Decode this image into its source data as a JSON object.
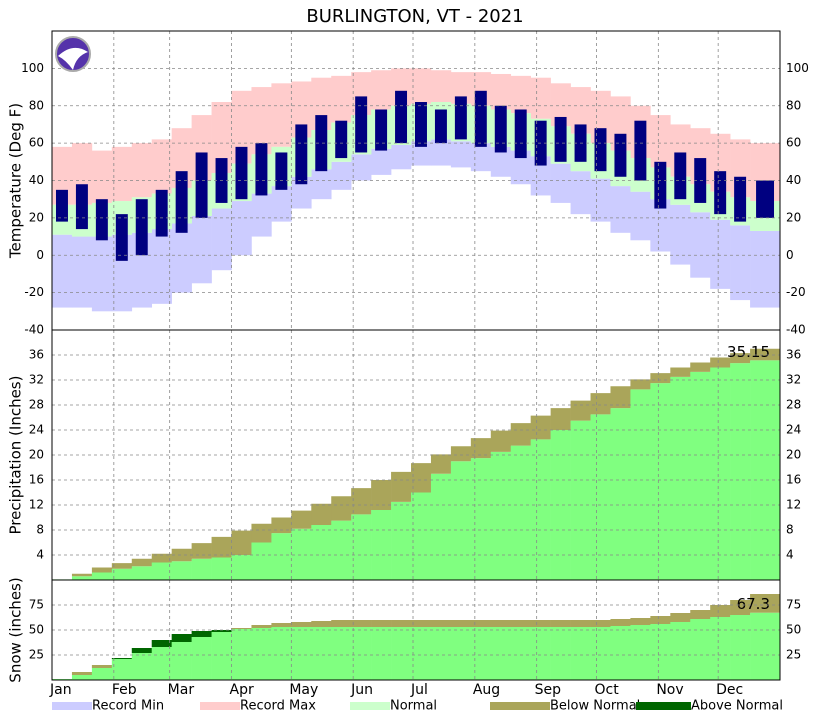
{
  "chart_data": [
    {
      "type": "range-bar",
      "title": "BURLINGTON, VT - 2021",
      "y_label": "Temperature (Deg F)",
      "x": [
        1,
        11,
        21,
        31,
        41,
        51,
        61,
        71,
        81,
        91,
        101,
        111,
        121,
        131,
        141,
        151,
        161,
        171,
        181,
        191,
        201,
        211,
        221,
        231,
        241,
        251,
        261,
        271,
        281,
        291,
        301,
        311,
        321,
        331,
        341,
        351
      ],
      "xlim": [
        1,
        366
      ],
      "ylim": [
        -40,
        120
      ],
      "yticks": [
        -40,
        -20,
        0,
        20,
        40,
        60,
        80,
        100
      ],
      "grid": true,
      "series": [
        {
          "name": "Record Min",
          "color": "#ccccff",
          "values": [
            -28,
            -28,
            -30,
            -30,
            -28,
            -26,
            -20,
            -15,
            -8,
            0,
            10,
            18,
            25,
            30,
            35,
            40,
            43,
            46,
            48,
            48,
            47,
            45,
            42,
            38,
            32,
            28,
            22,
            18,
            12,
            8,
            2,
            -5,
            -12,
            -18,
            -24,
            -28
          ]
        },
        {
          "name": "Record Max",
          "color": "#ffcccc",
          "values": [
            58,
            60,
            56,
            58,
            60,
            62,
            68,
            75,
            82,
            88,
            90,
            92,
            93,
            95,
            96,
            98,
            99,
            100,
            100,
            99,
            98,
            98,
            97,
            96,
            95,
            92,
            90,
            88,
            85,
            80,
            75,
            70,
            68,
            65,
            62,
            60
          ]
        },
        {
          "name": "Normal",
          "color": "#ccffcc",
          "low": [
            11,
            10,
            10,
            11,
            12,
            14,
            17,
            21,
            25,
            29,
            33,
            37,
            42,
            46,
            50,
            54,
            57,
            59,
            61,
            62,
            61,
            60,
            58,
            56,
            53,
            49,
            45,
            41,
            37,
            34,
            30,
            27,
            23,
            19,
            16,
            13
          ],
          "high": [
            27,
            27,
            28,
            29,
            31,
            33,
            36,
            40,
            44,
            49,
            54,
            58,
            63,
            67,
            71,
            75,
            78,
            80,
            81,
            82,
            81,
            80,
            78,
            76,
            73,
            69,
            65,
            60,
            56,
            52,
            47,
            42,
            38,
            34,
            31,
            29
          ]
        }
      ],
      "observed": {
        "color": "#000080",
        "low": [
          18,
          14,
          8,
          -3,
          0,
          10,
          12,
          20,
          28,
          30,
          32,
          35,
          38,
          45,
          52,
          55,
          56,
          60,
          58,
          60,
          62,
          58,
          55,
          52,
          48,
          50,
          50,
          45,
          42,
          40,
          25,
          30,
          28,
          22,
          18,
          20
        ],
        "high": [
          35,
          38,
          30,
          22,
          30,
          35,
          45,
          55,
          52,
          58,
          60,
          55,
          70,
          75,
          72,
          85,
          78,
          88,
          82,
          78,
          85,
          88,
          80,
          78,
          72,
          74,
          70,
          68,
          65,
          72,
          50,
          55,
          52,
          45,
          42,
          40
        ]
      }
    },
    {
      "type": "cumulative",
      "y_label": "Precipitation (Inches)",
      "ylim": [
        0,
        40
      ],
      "yticks": [
        4,
        8,
        12,
        16,
        20,
        24,
        28,
        32,
        36
      ],
      "grid": true,
      "color": "#80ff80",
      "values": [
        0.1,
        0.6,
        1.2,
        1.8,
        2.2,
        2.8,
        3.0,
        3.4,
        3.6,
        4.0,
        6.0,
        7.5,
        8.2,
        8.8,
        9.5,
        10.5,
        11.2,
        12.5,
        14.0,
        17.0,
        19.0,
        19.5,
        20.5,
        21.5,
        22.5,
        24.0,
        25.5,
        26.5,
        27.5,
        30.5,
        31.5,
        32.5,
        33.3,
        34.0,
        34.7,
        35.15
      ],
      "normal": [
        0.1,
        1.0,
        2.0,
        2.7,
        3.4,
        4.2,
        5.0,
        5.9,
        6.9,
        7.9,
        9.0,
        10.0,
        11.1,
        12.2,
        13.4,
        14.7,
        16.0,
        17.3,
        18.7,
        20.1,
        21.4,
        22.7,
        23.9,
        25.1,
        26.3,
        27.5,
        28.7,
        29.9,
        31.0,
        32.1,
        33.1,
        34.0,
        34.8,
        35.6,
        36.3,
        37.0
      ],
      "fills": [
        {
          "name": "Below Normal",
          "color": "#aaa55a"
        },
        {
          "name": "Above Normal",
          "color": "#006600"
        }
      ]
    },
    {
      "type": "cumulative",
      "y_label": "Snow (inches)",
      "ylim": [
        0,
        100
      ],
      "yticks": [
        25,
        50,
        75
      ],
      "grid": true,
      "color": "#80ff80",
      "values": [
        1,
        5,
        12,
        22,
        32,
        40,
        46,
        49,
        50,
        51,
        52,
        53,
        53,
        53,
        53,
        53,
        53,
        53,
        53,
        53,
        53,
        53,
        53,
        53,
        53,
        53,
        53,
        53,
        54,
        55,
        56,
        58,
        61,
        63,
        65,
        67.3
      ],
      "normal": [
        1,
        8,
        15,
        21,
        27,
        33,
        38,
        43,
        48,
        52,
        55,
        57,
        58,
        59,
        60,
        60,
        60,
        60,
        60,
        60,
        60,
        60,
        60,
        60,
        60,
        60,
        60,
        60,
        61,
        62,
        64,
        67,
        70,
        75,
        80,
        86
      ],
      "xticks": [
        {
          "value": 1,
          "label": "Jan"
        },
        {
          "value": 32,
          "label": "Feb"
        },
        {
          "value": 60,
          "label": "Mar"
        },
        {
          "value": 91,
          "label": "Apr"
        },
        {
          "value": 121,
          "label": "May"
        },
        {
          "value": 152,
          "label": "Jun"
        },
        {
          "value": 182,
          "label": "Jul"
        },
        {
          "value": 213,
          "label": "Aug"
        },
        {
          "value": 244,
          "label": "Sep"
        },
        {
          "value": 274,
          "label": "Oct"
        },
        {
          "value": 305,
          "label": "Nov"
        },
        {
          "value": 335,
          "label": "Dec"
        }
      ]
    }
  ]
}
